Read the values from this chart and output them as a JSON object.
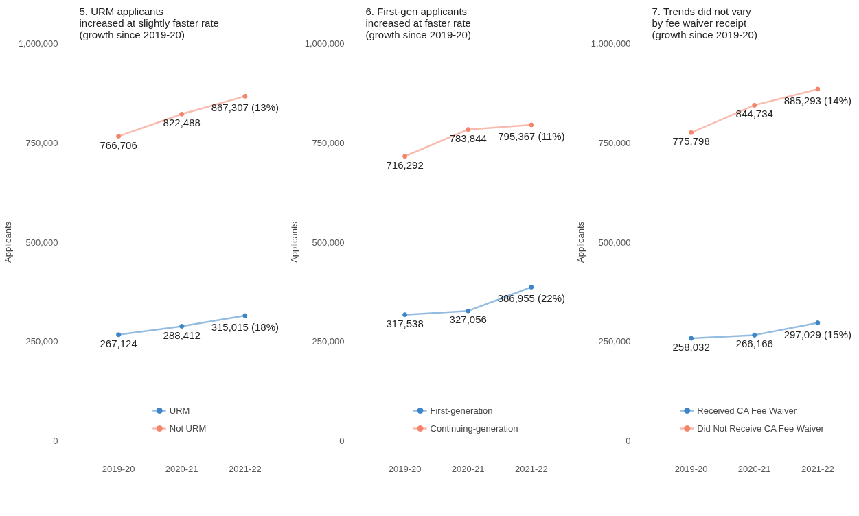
{
  "chart_data": [
    {
      "type": "line",
      "title": "5. URM applicants\nincreased at slightly faster rate\n(growth since 2019-20)",
      "ylabel": "Applicants",
      "categories": [
        "2019-20",
        "2020-21",
        "2021-22"
      ],
      "ylim": [
        0,
        1000000
      ],
      "yticks": [
        {
          "value": 0,
          "label": "0"
        },
        {
          "value": 250000,
          "label": "250,000"
        },
        {
          "value": 500000,
          "label": "500,000"
        },
        {
          "value": 750000,
          "label": "750,000"
        },
        {
          "value": 1000000,
          "label": "1,000,000"
        }
      ],
      "grid": false,
      "legend": "bottom",
      "marker": "circle",
      "series": [
        {
          "name": "URM",
          "color": "#3d85c6",
          "values": [
            267124,
            288412,
            315015
          ],
          "value_labels": [
            "267,124",
            "288,412",
            "315,015 (18%)"
          ]
        },
        {
          "name": "Not URM",
          "color": "#f4846a",
          "values": [
            766706,
            822488,
            867307
          ],
          "value_labels": [
            "766,706",
            "822,488",
            "867,307 (13%)"
          ]
        }
      ]
    },
    {
      "type": "line",
      "title": "6. First-gen applicants\nincreased at faster rate\n(growth since 2019-20)",
      "ylabel": "Applicants",
      "categories": [
        "2019-20",
        "2020-21",
        "2021-22"
      ],
      "ylim": [
        0,
        1000000
      ],
      "yticks": [
        {
          "value": 0,
          "label": "0"
        },
        {
          "value": 250000,
          "label": "250,000"
        },
        {
          "value": 500000,
          "label": "500,000"
        },
        {
          "value": 750000,
          "label": "750,000"
        },
        {
          "value": 1000000,
          "label": "1,000,000"
        }
      ],
      "grid": false,
      "legend": "bottom",
      "marker": "circle",
      "series": [
        {
          "name": "First-generation",
          "color": "#3d85c6",
          "values": [
            317538,
            327056,
            386955
          ],
          "value_labels": [
            "317,538",
            "327,056",
            "386,955 (22%)"
          ]
        },
        {
          "name": "Continuing-generation",
          "color": "#f4846a",
          "values": [
            716292,
            783844,
            795367
          ],
          "value_labels": [
            "716,292",
            "783,844",
            "795,367 (11%)"
          ]
        }
      ]
    },
    {
      "type": "line",
      "title": "7. Trends did not vary\nby fee waiver receipt\n(growth since 2019-20)",
      "ylabel": "Applicants",
      "categories": [
        "2019-20",
        "2020-21",
        "2021-22"
      ],
      "ylim": [
        0,
        1000000
      ],
      "yticks": [
        {
          "value": 0,
          "label": "0"
        },
        {
          "value": 250000,
          "label": "250,000"
        },
        {
          "value": 500000,
          "label": "500,000"
        },
        {
          "value": 750000,
          "label": "750,000"
        },
        {
          "value": 1000000,
          "label": "1,000,000"
        }
      ],
      "grid": false,
      "legend": "bottom",
      "marker": "circle",
      "series": [
        {
          "name": "Received CA Fee Waiver",
          "color": "#3d85c6",
          "values": [
            258032,
            266166,
            297029
          ],
          "value_labels": [
            "258,032",
            "266,166",
            "297,029 (15%)"
          ]
        },
        {
          "name": "Did Not Receive CA Fee Waiver",
          "color": "#f4846a",
          "values": [
            775798,
            844734,
            885293
          ],
          "value_labels": [
            "775,798",
            "844,734",
            "885,293 (14%)"
          ]
        }
      ]
    }
  ]
}
